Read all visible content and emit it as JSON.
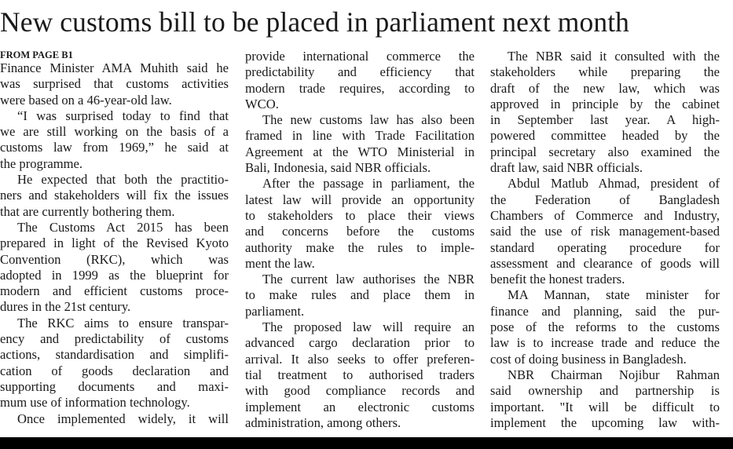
{
  "headline": "New customs bill to be placed in parliament next month",
  "kicker": "FROM PAGE B1",
  "columns": [
    [
      {
        "indent": false,
        "lines": [
          "Finance Minister AMA Muhith said he",
          "was surprised that customs activities",
          "were based on a 46-year-old law."
        ]
      },
      {
        "indent": true,
        "lines": [
          "“I was surprised today to find that",
          "we are still working on the basis of a",
          "customs law from 1969,” he said at",
          "the programme."
        ]
      },
      {
        "indent": true,
        "lines": [
          "He expected that both the practitio-",
          "ners and stakeholders will fix the issues",
          "that are currently bothering them."
        ]
      },
      {
        "indent": true,
        "lines": [
          "The Customs Act 2015 has been",
          "prepared in light of the Revised Kyoto",
          "Convention (RKC), which was",
          "adopted in 1999 as the blueprint for",
          "modern and efficient customs proce-",
          "dures in the 21st century."
        ]
      },
      {
        "indent": true,
        "lines": [
          "The RKC aims to ensure transpar-",
          "ency and predictability of customs",
          "actions, standardisation and simplifi-",
          "cation of goods declaration and",
          "supporting documents and maxi-",
          "mum use of information technology."
        ]
      },
      {
        "indent": true,
        "open": true,
        "lines": [
          "Once implemented widely, it will"
        ]
      }
    ],
    [
      {
        "indent": false,
        "lines": [
          "provide international commerce the",
          "predictability and efficiency that",
          "modern trade requires, according to",
          "WCO."
        ]
      },
      {
        "indent": true,
        "lines": [
          "The new customs law has also been",
          "framed in line with Trade Facilitation",
          "Agreement at the WTO Ministerial in",
          "Bali, Indonesia, said NBR officials."
        ]
      },
      {
        "indent": true,
        "lines": [
          "After the passage in parliament, the",
          "latest law will provide an opportunity",
          "to stakeholders to place their views",
          "and concerns before the customs",
          "authority make the rules to imple-",
          "ment the law."
        ]
      },
      {
        "indent": true,
        "lines": [
          "The current law authorises the NBR",
          "to make rules and place them in",
          "parliament."
        ]
      },
      {
        "indent": true,
        "lines": [
          "The proposed law will require an",
          "advanced cargo declaration prior to",
          "arrival. It also seeks to offer preferen-",
          "tial treatment to authorised traders",
          "with good compliance records and",
          "implement an electronic customs",
          "administration, among others."
        ]
      }
    ],
    [
      {
        "indent": true,
        "lines": [
          "The NBR said it consulted with the",
          "stakeholders while preparing the",
          "draft of the new law, which was",
          "approved in principle by the cabinet",
          "in September last year.   A high-",
          "powered committee headed by the",
          "principal secretary also examined the",
          "draft law, said NBR officials."
        ]
      },
      {
        "indent": true,
        "lines": [
          "Abdul Matlub Ahmad, president of",
          "the Federation of Bangladesh",
          "Chambers of Commerce and Industry,",
          "said the use of risk management-based",
          "standard operating procedure for",
          "assessment and clearance of goods will",
          "benefit the honest traders."
        ]
      },
      {
        "indent": true,
        "lines": [
          "MA Mannan, state minister for",
          "finance and planning, said the pur-",
          "pose of the reforms to the customs",
          "law is to increase trade and reduce the",
          "cost of doing business in Bangladesh."
        ]
      },
      {
        "indent": true,
        "open": true,
        "lines": [
          "NBR Chairman Nojibur Rahman",
          "said ownership and partnership is",
          "important. \"It will be difficult to",
          "implement the upcoming law with-"
        ]
      }
    ]
  ]
}
